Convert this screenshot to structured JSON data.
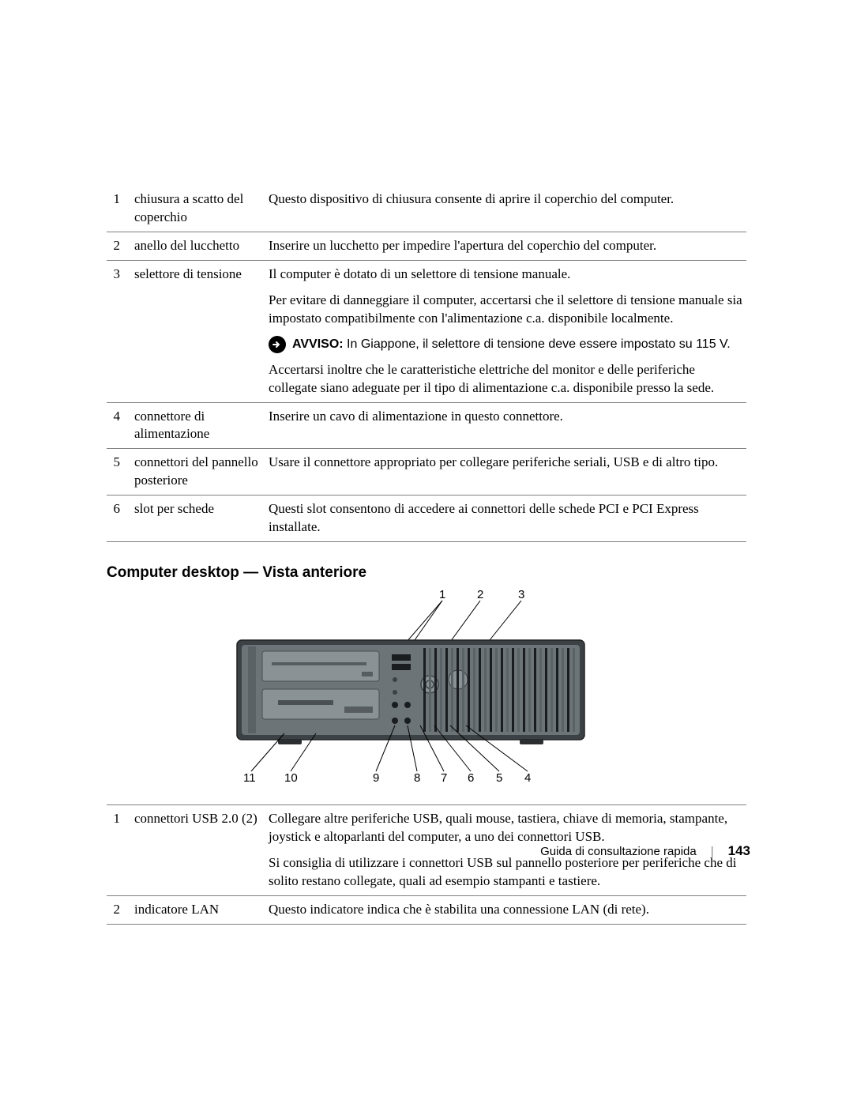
{
  "table1": {
    "rows": [
      {
        "num": "1",
        "term": "chiusura a scatto del coperchio",
        "desc": [
          "Questo dispositivo di chiusura consente di aprire il coperchio del computer."
        ]
      },
      {
        "num": "2",
        "term": "anello del lucchetto",
        "desc": [
          "Inserire un lucchetto per impedire l'apertura del coperchio del computer."
        ]
      },
      {
        "num": "3",
        "term": "selettore di tensione",
        "desc": [
          "Il computer è dotato di un selettore di tensione manuale.",
          "Per evitare di danneggiare il computer, accertarsi che il selettore di tensione manuale sia impostato compatibilmente con l'alimentazione c.a. disponibile localmente."
        ],
        "avviso": {
          "label": "AVVISO:",
          "text": "In Giappone, il selettore di tensione deve essere impostato su 115 V."
        },
        "desc_after": [
          "Accertarsi inoltre che le caratteristiche elettriche del monitor e delle periferiche collegate siano adeguate per il tipo di alimentazione c.a. disponibile presso la sede."
        ]
      },
      {
        "num": "4",
        "term": "connettore di alimentazione",
        "desc": [
          "Inserire un cavo di alimentazione in questo connettore."
        ]
      },
      {
        "num": "5",
        "term": "connettori del pannello posteriore",
        "desc": [
          "Usare il connettore appropriato per collegare periferiche seriali, USB e di altro tipo."
        ]
      },
      {
        "num": "6",
        "term": "slot per schede",
        "desc": [
          "Questi slot consentono di accedere ai connettori delle schede PCI e PCI Express installate."
        ]
      }
    ]
  },
  "section_heading": "Computer desktop — Vista anteriore",
  "diagram": {
    "top_nums": [
      "1",
      "2",
      "3"
    ],
    "bottom_nums": [
      "11",
      "10",
      "9",
      "8",
      "7",
      "6",
      "5",
      "4"
    ],
    "chassis_color": "#6c7478",
    "chassis_dark": "#3b4144",
    "drive_color": "#8a9296",
    "grille_dark": "#1a1d1f",
    "grille_light": "#5a6266"
  },
  "table2": {
    "rows": [
      {
        "num": "1",
        "term": "connettori USB 2.0 (2)",
        "desc": [
          "Collegare altre periferiche USB, quali mouse, tastiera, chiave di memoria, stampante, joystick e altoparlanti del computer, a uno dei connettori USB.",
          "Si consiglia di utilizzare i connettori USB sul pannello posteriore per periferiche che di solito restano collegate, quali ad esempio stampanti e tastiere."
        ]
      },
      {
        "num": "2",
        "term": "indicatore LAN",
        "desc": [
          "Questo indicatore indica che è stabilita una connessione LAN (di rete)."
        ]
      }
    ]
  },
  "footer": {
    "title": "Guida di consultazione rapida",
    "page": "143"
  }
}
